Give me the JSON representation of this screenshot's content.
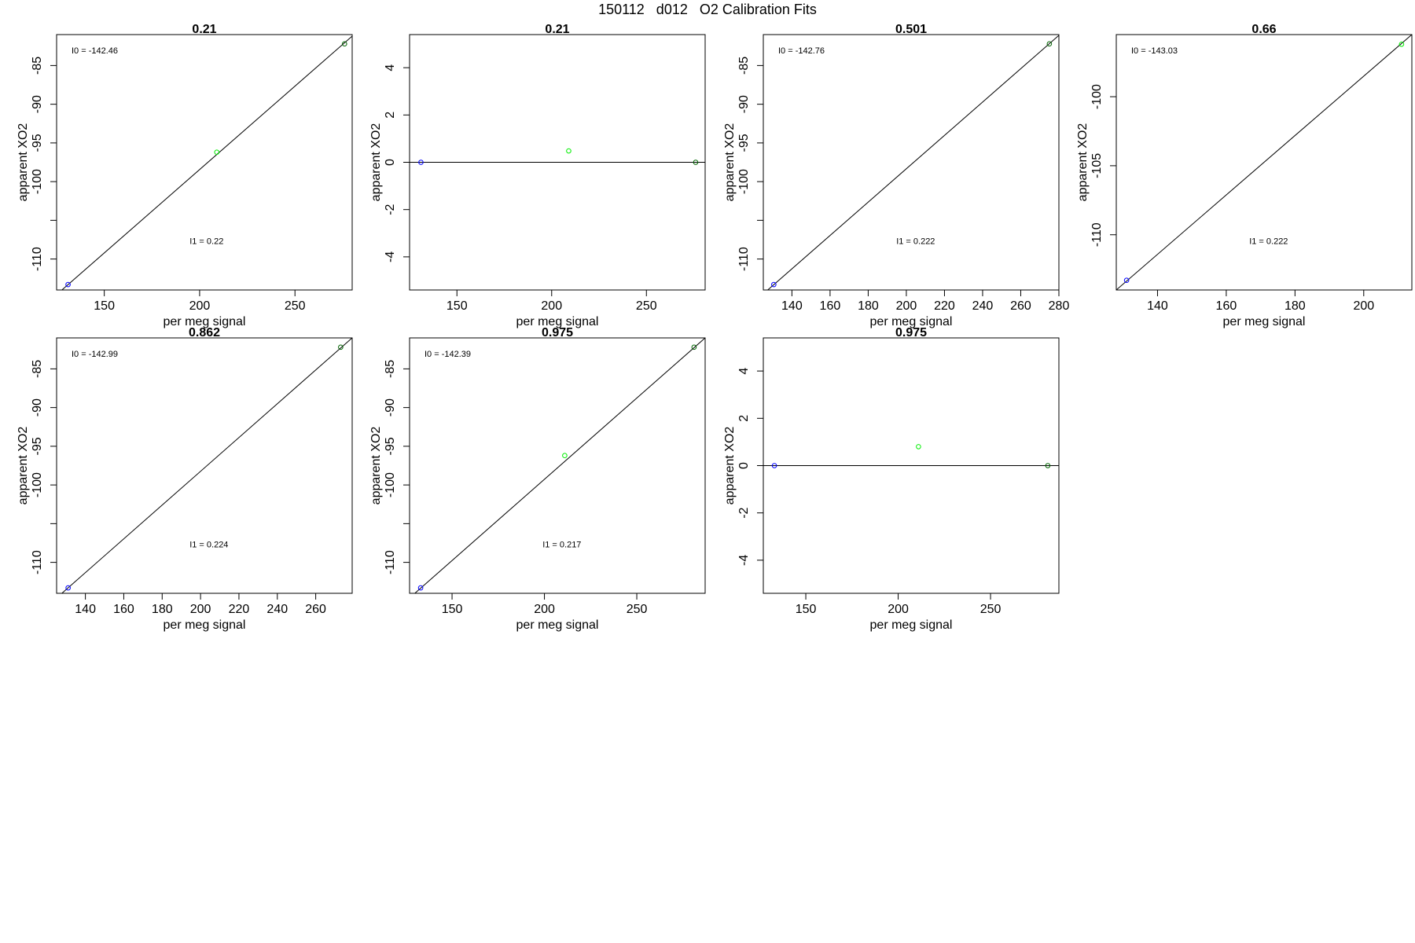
{
  "page_title": "150112   d012   O2 Calibration Fits",
  "colors": {
    "axis": "#000000",
    "fit_line": "#000000",
    "point_blue": "#0000ff",
    "point_green": "#00ee00",
    "point_dark": "#006400"
  },
  "chart_data": [
    {
      "type": "scatter",
      "title": "0.21",
      "xlabel": "per meg signal",
      "ylabel": "apparent XO2",
      "xlim": [
        125,
        280
      ],
      "ylim": [
        -114,
        -81
      ],
      "xticks": [
        150,
        200,
        250
      ],
      "yticks": [
        -85,
        -90,
        -95,
        -100,
        -105,
        -110
      ],
      "ytick_labels": [
        "-85",
        "-90",
        "-95",
        "-100",
        "",
        "-110"
      ],
      "points": [
        {
          "x": 131,
          "y": -113.3,
          "color": "#0000ff"
        },
        {
          "x": 209,
          "y": -96.2,
          "color": "#00ee00"
        },
        {
          "x": 276,
          "y": -82.2,
          "color": "#006400"
        }
      ],
      "fit_line": [
        [
          125,
          -114.6
        ],
        [
          280,
          -81.2
        ]
      ],
      "annotations": [
        {
          "text": "I0 =  -142.46",
          "pos": "top-left"
        },
        {
          "text": "I1 =  0.22",
          "pos": "lower-mid"
        }
      ]
    },
    {
      "type": "scatter",
      "title": "0.21",
      "xlabel": "per meg signal",
      "ylabel": "apparent XO2",
      "xlim": [
        125,
        281
      ],
      "ylim": [
        -5.4,
        5.4
      ],
      "xticks": [
        150,
        200,
        250
      ],
      "yticks": [
        4,
        2,
        0,
        -2,
        -4
      ],
      "ytick_labels": [
        "4",
        "2",
        "0",
        "-2",
        "-4"
      ],
      "points": [
        {
          "x": 131,
          "y": 0,
          "color": "#0000ff"
        },
        {
          "x": 209,
          "y": 0.48,
          "color": "#00ee00"
        },
        {
          "x": 276,
          "y": 0,
          "color": "#006400"
        }
      ],
      "fit_line": [
        [
          125,
          0
        ],
        [
          281,
          0
        ]
      ],
      "annotations": []
    },
    {
      "type": "scatter",
      "title": "0.501",
      "xlabel": "per meg signal",
      "ylabel": "apparent XO2",
      "xlim": [
        125,
        280
      ],
      "ylim": [
        -114,
        -81
      ],
      "xticks": [
        140,
        160,
        180,
        200,
        220,
        240,
        260,
        280
      ],
      "yticks": [
        -85,
        -90,
        -95,
        -100,
        -105,
        -110
      ],
      "ytick_labels": [
        "-85",
        "-90",
        "-95",
        "-100",
        "",
        "-110"
      ],
      "points": [
        {
          "x": 130.5,
          "y": -113.3,
          "color": "#0000ff"
        },
        {
          "x": 275,
          "y": -82.2,
          "color": "#006400"
        }
      ],
      "fit_line": [
        [
          125,
          -114.5
        ],
        [
          280,
          -81.1
        ]
      ],
      "annotations": [
        {
          "text": "I0 =  -142.76",
          "pos": "top-left"
        },
        {
          "text": "I1 =  0.222",
          "pos": "lower-mid"
        }
      ]
    },
    {
      "type": "scatter",
      "title": "0.66",
      "xlabel": "per meg signal",
      "ylabel": "apparent XO2",
      "xlim": [
        128,
        214
      ],
      "ylim": [
        -114,
        -95.5
      ],
      "xticks": [
        140,
        160,
        180,
        200
      ],
      "yticks": [
        -100,
        -105,
        -110
      ],
      "ytick_labels": [
        "-100",
        "-105",
        "-110"
      ],
      "points": [
        {
          "x": 131,
          "y": -113.3,
          "color": "#0000ff"
        },
        {
          "x": 211,
          "y": -96.2,
          "color": "#00ee00"
        }
      ],
      "fit_line": [
        [
          128,
          -114
        ],
        [
          214,
          -95.5
        ]
      ],
      "annotations": [
        {
          "text": "I0 =  -143.03",
          "pos": "top-left"
        },
        {
          "text": "I1 =  0.222",
          "pos": "lower-mid"
        }
      ]
    },
    {
      "type": "scatter",
      "title": "0.862",
      "xlabel": "per meg signal",
      "ylabel": "apparent XO2",
      "xlim": [
        125,
        279
      ],
      "ylim": [
        -114,
        -81
      ],
      "xticks": [
        140,
        160,
        180,
        200,
        220,
        240,
        260
      ],
      "yticks": [
        -85,
        -90,
        -95,
        -100,
        -105,
        -110
      ],
      "ytick_labels": [
        "-85",
        "-90",
        "-95",
        "-100",
        "",
        "-110"
      ],
      "points": [
        {
          "x": 131,
          "y": -113.3,
          "color": "#0000ff"
        },
        {
          "x": 273,
          "y": -82.2,
          "color": "#006400"
        }
      ],
      "fit_line": [
        [
          125,
          -114.6
        ],
        [
          279,
          -81
        ]
      ],
      "annotations": [
        {
          "text": "I0 =  -142.99",
          "pos": "top-left"
        },
        {
          "text": "I1 =  0.224",
          "pos": "lower-mid"
        }
      ]
    },
    {
      "type": "scatter",
      "title": "0.975",
      "xlabel": "per meg signal",
      "ylabel": "apparent XO2",
      "xlim": [
        127,
        287
      ],
      "ylim": [
        -114,
        -81
      ],
      "xticks": [
        150,
        200,
        250
      ],
      "yticks": [
        -85,
        -90,
        -95,
        -100,
        -105,
        -110
      ],
      "ytick_labels": [
        "-85",
        "-90",
        "-95",
        "-100",
        "",
        "-110"
      ],
      "points": [
        {
          "x": 133,
          "y": -113.3,
          "color": "#0000ff"
        },
        {
          "x": 211,
          "y": -96.2,
          "color": "#00ee00"
        },
        {
          "x": 281,
          "y": -82.2,
          "color": "#006400"
        }
      ],
      "fit_line": [
        [
          127,
          -114.6
        ],
        [
          287,
          -81
        ]
      ],
      "annotations": [
        {
          "text": "I0 =  -142.39",
          "pos": "top-left"
        },
        {
          "text": "I1 =  0.217",
          "pos": "lower-mid"
        }
      ]
    },
    {
      "type": "scatter",
      "title": "0.975",
      "xlabel": "per meg signal",
      "ylabel": "apparent XO2",
      "xlim": [
        127,
        287
      ],
      "ylim": [
        -5.4,
        5.4
      ],
      "xticks": [
        150,
        200,
        250
      ],
      "yticks": [
        4,
        2,
        0,
        -2,
        -4
      ],
      "ytick_labels": [
        "4",
        "2",
        "0",
        "-2",
        "-4"
      ],
      "points": [
        {
          "x": 133,
          "y": 0,
          "color": "#0000ff"
        },
        {
          "x": 211,
          "y": 0.8,
          "color": "#00ee00"
        },
        {
          "x": 281,
          "y": 0,
          "color": "#006400"
        }
      ],
      "fit_line": [
        [
          127,
          0
        ],
        [
          287,
          0
        ]
      ],
      "annotations": []
    }
  ]
}
